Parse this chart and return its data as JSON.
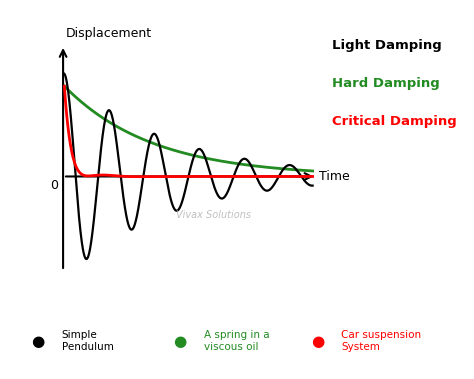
{
  "title_light": "Light Damping",
  "title_hard": "Hard Damping",
  "title_critical": "Critical Damping",
  "color_light": "#000000",
  "color_hard": "#228B22",
  "color_critical": "#FF0000",
  "xlabel": "Time",
  "ylabel": "Displacement",
  "zero_label": "0",
  "watermark": "Vivax Solutions",
  "legend_labels": [
    "Simple\nPendulum",
    "A spring in a\nviscous oil",
    "Car suspension\nSystem"
  ],
  "legend_colors": [
    "#000000",
    "#228B22",
    "#FF0000"
  ],
  "background_color": "#ffffff"
}
